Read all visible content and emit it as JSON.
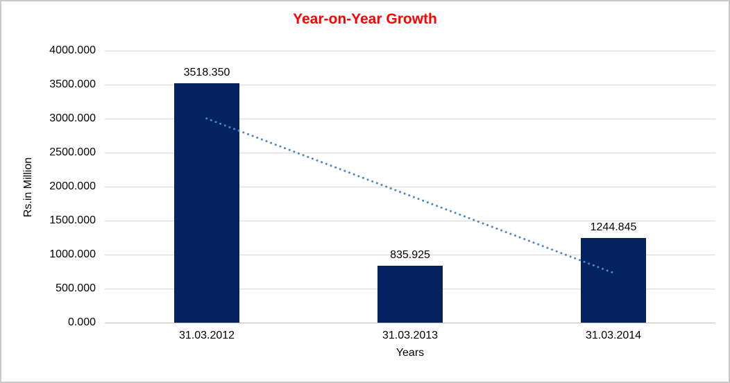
{
  "chart_data": {
    "type": "bar",
    "title": "Year-on-Year Growth",
    "title_color": "#FF0000",
    "categories": [
      "31.03.2012",
      "31.03.2013",
      "31.03.2014"
    ],
    "values": [
      3518.35,
      835.925,
      1244.845
    ],
    "data_labels": [
      "3518.350",
      "835.925",
      "1244.845"
    ],
    "xlabel": "Years",
    "ylabel": "Rs.in Million",
    "ylim": [
      0,
      4000
    ],
    "ytick_step": 500,
    "ytick_labels": [
      "0.000",
      "500.000",
      "1000.000",
      "1500.000",
      "2000.000",
      "2500.000",
      "3000.000",
      "3500.000",
      "4000.000"
    ],
    "grid": true,
    "legend_position": "none",
    "bar_color": "#042260",
    "gridline_color": "#D9D9D9",
    "axisline_color": "#BFBFBF",
    "background_color": "#FFFFFF",
    "border_color": "#C8C8C8",
    "trendline": {
      "type": "linear",
      "style": "dotted",
      "color": "#4A86C8",
      "start_value": 3003,
      "end_value": 730
    }
  }
}
